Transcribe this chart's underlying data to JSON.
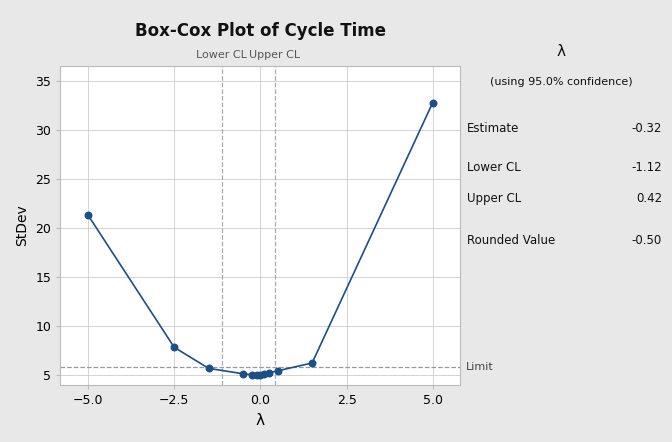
{
  "title": "Box-Cox Plot of Cycle Time",
  "xlabel": "λ",
  "ylabel": "StDev",
  "x_values": [
    -5.0,
    -2.5,
    -1.5,
    -0.5,
    -0.25,
    -0.1,
    0.0,
    0.1,
    0.25,
    0.5,
    1.5,
    5.0
  ],
  "y_values": [
    21.3,
    7.8,
    5.65,
    5.1,
    5.0,
    4.95,
    4.98,
    5.05,
    5.2,
    5.4,
    6.2,
    32.8
  ],
  "lower_cl": -1.12,
  "upper_cl": 0.42,
  "estimate": -0.32,
  "rounded_value": -0.5,
  "limit_y": 5.75,
  "ylim": [
    4.0,
    36.5
  ],
  "xlim": [
    -5.8,
    5.8
  ],
  "yticks": [
    5,
    10,
    15,
    20,
    25,
    30,
    35
  ],
  "xticks": [
    -5.0,
    -2.5,
    0.0,
    2.5,
    5.0
  ],
  "line_color": "#1a4f8a",
  "limit_color": "#999999",
  "cl_line_color": "#aaaaaa",
  "bg_color": "#e8e8e8",
  "plot_bg_color": "#ffffff",
  "info_lambda": "λ",
  "info_confidence": "(using 95.0% confidence)",
  "info_estimate_label": "Estimate",
  "info_estimate_val": "-0.32",
  "info_lower_label": "Lower CL",
  "info_lower_val": "-1.12",
  "info_upper_label": "Upper CL",
  "info_upper_val": "0.42",
  "info_rounded_label": "Rounded Value",
  "info_rounded_val": "-0.50"
}
